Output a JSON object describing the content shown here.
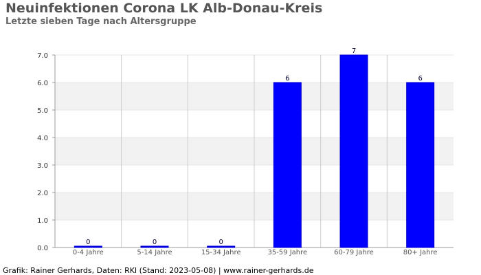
{
  "title": "Neuinfektionen Corona LK Alb-Donau-Kreis",
  "subtitle": "Letzte sieben Tage nach Altersgruppe",
  "footer": "Grafik: Rainer Gerhards, Daten: RKI (Stand: 2023-05-08) | www.rainer-gerhards.de",
  "colors": {
    "bar": "#0000ff",
    "bar_edge": "#0000cc",
    "band": "#f2f2f2",
    "grid": "#cccccc"
  },
  "chart_data": {
    "type": "bar",
    "title": "Neuinfektionen Corona LK Alb-Donau-Kreis",
    "subtitle": "Letzte sieben Tage nach Altersgruppe",
    "categories": [
      "0-4 Jahre",
      "5-14 Jahre",
      "15-34 Jahre",
      "35-59 Jahre",
      "60-79 Jahre",
      "80+ Jahre"
    ],
    "values": [
      0,
      0,
      0,
      6,
      7,
      6
    ],
    "data_labels": [
      "0",
      "0",
      "0",
      "6",
      "7",
      "6"
    ],
    "ylim": [
      0,
      7
    ],
    "yticks": [
      "0.0",
      "1.0",
      "2.0",
      "3.0",
      "4.0",
      "5.0",
      "6.0",
      "7.0"
    ],
    "grid": true,
    "legend": "none"
  }
}
